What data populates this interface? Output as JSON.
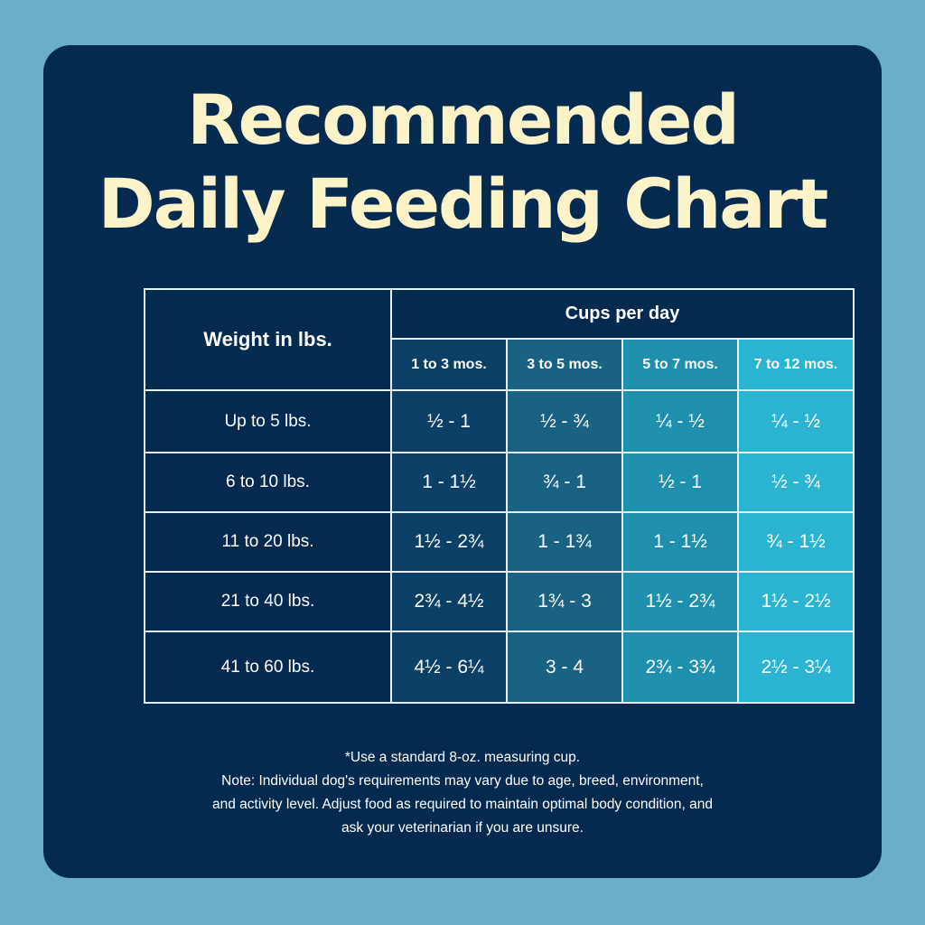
{
  "title_lines": [
    "Recommended",
    "Daily Feeding Chart"
  ],
  "colors": {
    "background": "#6aaec8",
    "card": "#052a50",
    "title": "#fdf3c8",
    "columns": [
      "#0c3f66",
      "#1a6283",
      "#1f8fae",
      "#2ab4d2"
    ]
  },
  "chart_data": {
    "type": "table",
    "row_header_label": "Weight in lbs.",
    "column_group_label": "Cups per day",
    "columns": [
      "1 to 3 mos.",
      "3 to 5 mos.",
      "5 to 7 mos.",
      "7 to 12 mos."
    ],
    "rows": [
      {
        "label": "Up to 5 lbs.",
        "values": [
          "½ - 1",
          "½ - ¾",
          "¼ - ½",
          "¼ - ½"
        ]
      },
      {
        "label": "6 to 10 lbs.",
        "values": [
          "1 - 1½",
          "¾ - 1",
          "½ - 1",
          "½ - ¾"
        ]
      },
      {
        "label": "11 to 20 lbs.",
        "values": [
          "1½ - 2¾",
          "1 - 1¾",
          "1 - 1½",
          "¾ - 1½"
        ]
      },
      {
        "label": "21 to 40 lbs.",
        "values": [
          "2¾ - 4½",
          "1¾ - 3",
          "1½ - 2¾",
          "1½ - 2½"
        ]
      },
      {
        "label": "41 to 60 lbs.",
        "values": [
          "4½ - 6¼",
          "3 - 4",
          "2¾ - 3¾",
          "2½ - 3¼"
        ]
      }
    ]
  },
  "notes": [
    "*Use a standard 8-oz. measuring cup.",
    "Note: Individual dog's requirements may vary due to age, breed, environment,",
    "and activity level. Adjust food as required to maintain optimal body condition, and",
    "ask your veterinarian if you are unsure."
  ]
}
